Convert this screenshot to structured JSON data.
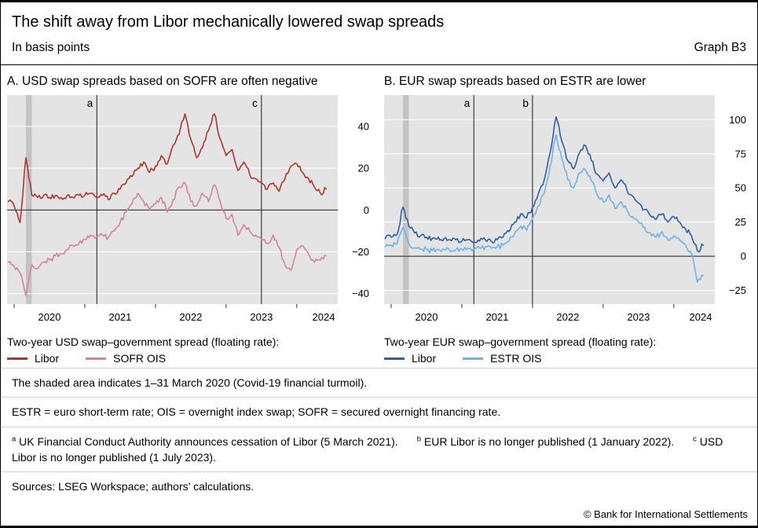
{
  "header": {
    "title": "The shift away from Libor mechanically lowered swap spreads",
    "subtitle": "In basis points",
    "graph_label": "Graph B3"
  },
  "panels": [
    {
      "title": "A. USD swap spreads based on SOFR are often negative",
      "legend_heading": "Two-year USD swap–government spread (floating rate):"
    },
    {
      "title": "B. EUR swap spreads based on ESTR are lower",
      "legend_heading": "Two-year EUR swap–government spread (floating rate):"
    }
  ],
  "chart_data": [
    {
      "type": "line",
      "title": "A. USD swap spreads based on SOFR are often negative",
      "units": "basis points",
      "x_encoding": "decimal years, monthly points Dec 2019 - Jun 2024",
      "x_start": 2019.9167,
      "x_step": 0.0833333,
      "xlim": [
        2019.9,
        2024.58
      ],
      "ylim": [
        -45,
        55
      ],
      "yticks": [
        -40,
        -20,
        0,
        20,
        40
      ],
      "xticks": [
        2020,
        2021,
        2022,
        2023,
        2024
      ],
      "ylabel_side": "right",
      "plot_bg": "#e4e4e4",
      "grid_color": "#ffffff",
      "zero_line": true,
      "shaded_region": {
        "x0": 2020.167,
        "x1": 2020.25,
        "color": "#c3c3c3",
        "note": "1–31 March 2020 (Covid-19 financial turmoil)"
      },
      "event_lines": [
        {
          "label": "a",
          "x": 2021.17
        },
        {
          "label": "c",
          "x": 2023.5
        }
      ],
      "series": [
        {
          "name": "Libor",
          "color": "#b2352c",
          "values": [
            4,
            2,
            -6,
            25,
            7,
            6,
            7,
            6,
            7,
            6,
            7,
            6,
            7,
            7,
            8,
            6,
            7,
            5,
            8,
            10,
            13,
            16,
            20,
            23,
            18,
            21,
            26,
            22,
            31,
            36,
            46,
            34,
            25,
            30,
            38,
            46,
            34,
            26,
            29,
            19,
            23,
            17,
            15,
            13,
            10,
            13,
            9,
            15,
            21,
            22,
            18,
            15,
            11,
            8,
            10
          ]
        },
        {
          "name": "SOFR OIS",
          "color": "#d5849b",
          "values": [
            -25,
            -27,
            -30,
            -41,
            -26,
            -28,
            -25,
            -24,
            -22,
            -21,
            -19,
            -17,
            -16,
            -14,
            -12,
            -13,
            -12,
            -13,
            -10,
            -6,
            -1,
            3,
            8,
            4,
            0,
            3,
            6,
            -1,
            5,
            11,
            13,
            4,
            2,
            8,
            4,
            12,
            4,
            -4,
            -2,
            -12,
            -7,
            -10,
            -12,
            -14,
            -16,
            -12,
            -18,
            -26,
            -29,
            -19,
            -17,
            -21,
            -25,
            -24,
            -22
          ]
        }
      ]
    },
    {
      "type": "line",
      "title": "B. EUR swap spreads based on ESTR are lower",
      "units": "basis points",
      "x_encoding": "decimal years, monthly points Dec 2019 - Jun 2024",
      "x_start": 2019.9167,
      "x_step": 0.0833333,
      "xlim": [
        2019.9,
        2024.58
      ],
      "ylim": [
        -35,
        118
      ],
      "yticks": [
        -25,
        0,
        25,
        50,
        75,
        100
      ],
      "xticks": [
        2020,
        2021,
        2022,
        2023,
        2024
      ],
      "ylabel_side": "right",
      "plot_bg": "#e4e4e4",
      "grid_color": "#ffffff",
      "zero_line": true,
      "shaded_region": {
        "x0": 2020.167,
        "x1": 2020.25,
        "color": "#c3c3c3",
        "note": "1–31 March 2020 (Covid-19 financial turmoil)"
      },
      "event_lines": [
        {
          "label": "a",
          "x": 2021.17
        },
        {
          "label": "b",
          "x": 2022.0
        }
      ],
      "series": [
        {
          "name": "Libor",
          "color": "#2f5fa5",
          "values": [
            13,
            14,
            16,
            36,
            22,
            17,
            15,
            14,
            13,
            14,
            13,
            12,
            12,
            11,
            12,
            10,
            11,
            12,
            11,
            12,
            14,
            18,
            25,
            31,
            28,
            36,
            46,
            56,
            76,
            102,
            84,
            70,
            64,
            76,
            81,
            70,
            60,
            55,
            61,
            50,
            56,
            49,
            44,
            39,
            34,
            30,
            27,
            31,
            25,
            29,
            25,
            20,
            15,
            4,
            8
          ]
        },
        {
          "name": "ESTR OIS",
          "color": "#6db3e6",
          "values": [
            7,
            8,
            9,
            21,
            9,
            6,
            5,
            5,
            4,
            5,
            5,
            4,
            5,
            5,
            6,
            5,
            6,
            7,
            6,
            7,
            8,
            11,
            17,
            22,
            19,
            27,
            37,
            46,
            66,
            89,
            71,
            56,
            50,
            61,
            63,
            55,
            45,
            40,
            45,
            35,
            40,
            34,
            29,
            25,
            21,
            17,
            14,
            18,
            12,
            15,
            12,
            8,
            2,
            -19,
            -14
          ]
        }
      ]
    }
  ],
  "footnotes": [
    "The shaded area indicates 1–31 March 2020 (Covid-19 financial turmoil).",
    "ESTR = euro short-term rate; OIS = overnight index swap; SOFR = secured overnight financing rate."
  ],
  "footnote_markers": [
    {
      "marker": "a",
      "text": "UK Financial Conduct Authority announces cessation of Libor (5 March 2021)."
    },
    {
      "marker": "b",
      "text": "EUR Libor is no longer published (1 January 2022)."
    },
    {
      "marker": "c",
      "text": "USD Libor is no longer published (1 July 2023)."
    }
  ],
  "sources": "Sources: LSEG Workspace; authors’ calculations.",
  "copyright": "© Bank for International Settlements"
}
